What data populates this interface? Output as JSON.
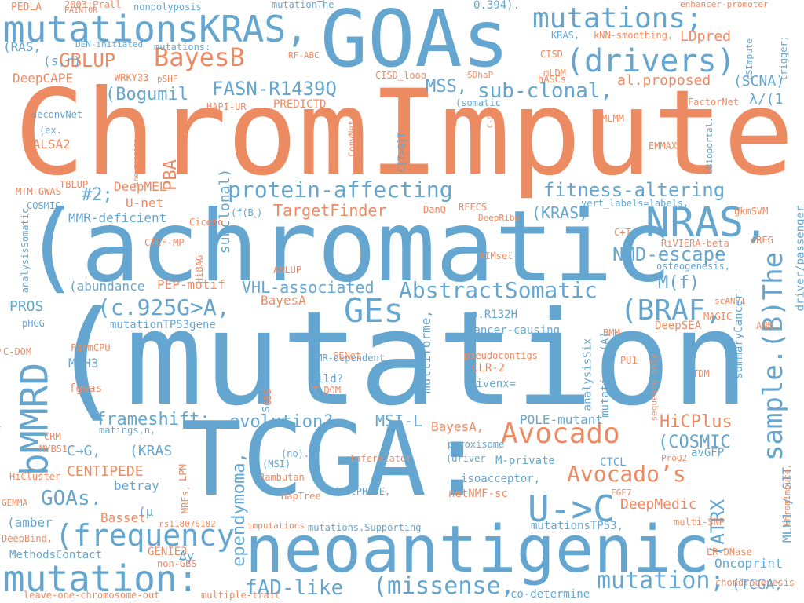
{
  "colors": {
    "blue": "#64a6cf",
    "orange": "#ec8a62"
  },
  "words": [
    {
      "text": "(mutation",
      "color": "#64a6cf"
    },
    {
      "text": "ChromImpute",
      "color": "#ec8a62"
    },
    {
      "text": "(achromatic",
      "color": "#64a6cf"
    },
    {
      "text": "TCGA:",
      "color": "#64a6cf"
    },
    {
      "text": "GOAs",
      "color": "#64a6cf"
    },
    {
      "text": "neoantigenic",
      "color": "#64a6cf"
    },
    {
      "text": "mutationsKRAS,",
      "color": "#64a6cf"
    },
    {
      "text": "mutations;",
      "color": "#64a6cf"
    },
    {
      "text": "(drivers)",
      "color": "#64a6cf"
    },
    {
      "text": "NRAS,",
      "color": "#64a6cf"
    },
    {
      "text": "sample.(B)The",
      "color": "#64a6cf"
    },
    {
      "text": "bMMRD",
      "color": "#64a6cf"
    },
    {
      "text": "mutation:",
      "color": "#64a6cf"
    },
    {
      "text": "Avocado",
      "color": "#ec8a62"
    },
    {
      "text": "U->C",
      "color": "#64a6cf"
    },
    {
      "text": "GEs",
      "color": "#64a6cf"
    },
    {
      "text": "BayesB",
      "color": "#ec8a62"
    },
    {
      "text": "(frequency",
      "color": "#64a6cf"
    },
    {
      "text": "mutation;",
      "color": "#64a6cf"
    },
    {
      "text": "AbstractSomatic",
      "color": "#64a6cf"
    },
    {
      "text": "(BRAF,",
      "color": "#64a6cf"
    },
    {
      "text": "(c.925G>A,",
      "color": "#64a6cf"
    },
    {
      "text": "protein-affecting",
      "color": "#64a6cf"
    },
    {
      "text": "Avocado’s",
      "color": "#ec8a62"
    },
    {
      "text": "sub-clonal,",
      "color": "#64a6cf"
    },
    {
      "text": "(missense,",
      "color": "#64a6cf"
    },
    {
      "text": "FASN-R1439Q",
      "color": "#64a6cf"
    },
    {
      "text": "fitness-altering",
      "color": "#64a6cf"
    },
    {
      "text": "NMD-escape",
      "color": "#64a6cf"
    },
    {
      "text": "GBLUP",
      "color": "#ec8a62"
    },
    {
      "text": "(ATRX",
      "color": "#64a6cf"
    },
    {
      "text": "fAD-like",
      "color": "#64a6cf"
    },
    {
      "text": "GOAs.",
      "color": "#64a6cf"
    },
    {
      "text": "(Bogumil",
      "color": "#64a6cf"
    },
    {
      "text": "frameshift;",
      "color": "#64a6cf"
    },
    {
      "text": "evolution?",
      "color": "#64a6cf"
    },
    {
      "text": "ependymoma,",
      "color": "#64a6cf"
    },
    {
      "text": "M(f)",
      "color": "#64a6cf"
    },
    {
      "text": "HiCPlus",
      "color": "#ec8a62"
    },
    {
      "text": "(COSMIC",
      "color": "#64a6cf"
    },
    {
      "text": "MSS,",
      "color": "#64a6cf"
    },
    {
      "text": "TargetFinder",
      "color": "#ec8a62"
    },
    {
      "text": "(KRAS,",
      "color": "#64a6cf"
    },
    {
      "text": "VHL-associated",
      "color": "#64a6cf"
    },
    {
      "text": "MSI-L",
      "color": "#64a6cf"
    },
    {
      "text": "CENTIPEDE",
      "color": "#ec8a62"
    },
    {
      "text": "C→G,",
      "color": "#64a6cf"
    },
    {
      "text": "(KRAS",
      "color": "#64a6cf"
    },
    {
      "text": "PBA",
      "color": "#ec8a62"
    },
    {
      "text": "#2;",
      "color": "#64a6cf"
    },
    {
      "text": "DeepMedic",
      "color": "#ec8a62"
    },
    {
      "text": "(TCGA;",
      "color": "#64a6cf"
    },
    {
      "text": "Oncoprint",
      "color": "#64a6cf"
    },
    {
      "text": "MLH1-/-GIT",
      "color": "#64a6cf"
    },
    {
      "text": "PROS",
      "color": "#64a6cf"
    },
    {
      "text": "LDpred",
      "color": "#ec8a62"
    },
    {
      "text": "(SCNA)",
      "color": "#64a6cf"
    },
    {
      "text": "λ/(1",
      "color": "#64a6cf"
    },
    {
      "text": "al.proposed",
      "color": "#ec8a62"
    },
    {
      "text": "subclonal)",
      "color": "#64a6cf"
    },
    {
      "text": "multiforme,",
      "color": "#64a6cf"
    },
    {
      "text": "so-encoded",
      "color": "#64a6cf"
    },
    {
      "text": "POLE-mutant",
      "color": "#64a6cf"
    },
    {
      "text": "(abundance",
      "color": "#64a6cf"
    },
    {
      "text": "PEP-motif",
      "color": "#ec8a62"
    },
    {
      "text": "BayesA",
      "color": "#ec8a62"
    },
    {
      "text": "BayesA,",
      "color": "#ec8a62"
    },
    {
      "text": "MSH3",
      "color": "#64a6cf"
    },
    {
      "text": "MMR-deficient",
      "color": "#64a6cf"
    },
    {
      "text": "U-net",
      "color": "#ec8a62"
    },
    {
      "text": "DeepMEL",
      "color": "#ec8a62"
    },
    {
      "text": "SALSA2",
      "color": "#ec8a62"
    },
    {
      "text": "DeepCAPE",
      "color": "#ec8a62"
    },
    {
      "text": "(RAS,",
      "color": "#64a6cf"
    },
    {
      "text": "(s,r)",
      "color": "#64a6cf"
    },
    {
      "text": "PEDLA",
      "color": "#ec8a62"
    },
    {
      "text": "mutationThe",
      "color": "#64a6cf"
    },
    {
      "text": "0.394).",
      "color": "#64a6cf"
    },
    {
      "text": "nonpolyposis",
      "color": "#64a6cf"
    },
    {
      "text": "2003;Prall",
      "color": "#ec8a62"
    },
    {
      "text": "PAINTOR",
      "color": "#ec8a62"
    },
    {
      "text": "mutations:",
      "color": "#64a6cf"
    },
    {
      "text": "DEN-initiated",
      "color": "#64a6cf"
    },
    {
      "text": "RF-ABC",
      "color": "#ec8a62"
    },
    {
      "text": "WRKY33",
      "color": "#ec8a62"
    },
    {
      "text": "pSHF",
      "color": "#ec8a62"
    },
    {
      "text": "HAPI-UR",
      "color": "#ec8a62"
    },
    {
      "text": "PREDICTD",
      "color": "#ec8a62"
    },
    {
      "text": "CISD_loop",
      "color": "#ec8a62"
    },
    {
      "text": "CISD",
      "color": "#ec8a62"
    },
    {
      "text": "mLDM",
      "color": "#ec8a62"
    },
    {
      "text": "hASCs",
      "color": "#ec8a62"
    },
    {
      "text": "SDhaP",
      "color": "#ec8a62"
    },
    {
      "text": "(somatic",
      "color": "#64a6cf"
    },
    {
      "text": "FactorNet",
      "color": "#ec8a62"
    },
    {
      "text": "KRAS,",
      "color": "#64a6cf"
    },
    {
      "text": "kNN-smoothing,",
      "color": "#ec8a62"
    },
    {
      "text": "enhancer-promoter",
      "color": "#ec8a62"
    },
    {
      "text": "givenx=",
      "color": "#64a6cf"
    },
    {
      "text": "CLR-2",
      "color": "#ec8a62"
    },
    {
      "text": "pseudocontigs",
      "color": "#ec8a62"
    },
    {
      "text": "wild?",
      "color": "#64a6cf"
    },
    {
      "text": "MMR-dependent",
      "color": "#64a6cf"
    },
    {
      "text": "p.R132H",
      "color": "#64a6cf"
    },
    {
      "text": "analysisSix",
      "color": "#64a6cf"
    },
    {
      "text": "mutations.(A)",
      "color": "#64a6cf"
    },
    {
      "text": "cancer-causing",
      "color": "#64a6cf"
    },
    {
      "text": "isoacceptor,",
      "color": "#64a6cf"
    },
    {
      "text": "betray",
      "color": "#64a6cf"
    },
    {
      "text": "netNMF-sc",
      "color": "#ec8a62"
    },
    {
      "text": "CTCL",
      "color": "#64a6cf"
    },
    {
      "text": "M-private",
      "color": "#64a6cf"
    },
    {
      "text": "avGFP",
      "color": "#64a6cf"
    },
    {
      "text": "mutationsTP53,",
      "color": "#64a6cf"
    },
    {
      "text": "mutations.Supporting",
      "color": "#64a6cf"
    },
    {
      "text": "GENIE3",
      "color": "#ec8a62"
    },
    {
      "text": "MethodsContact",
      "color": "#64a6cf"
    },
    {
      "text": "(amber",
      "color": "#64a6cf"
    },
    {
      "text": "Basset",
      "color": "#ec8a62"
    },
    {
      "text": "Δy",
      "color": "#64a6cf"
    },
    {
      "text": "matings,n,",
      "color": "#64a6cf"
    },
    {
      "text": "mutationTP53gene",
      "color": "#64a6cf"
    },
    {
      "text": "fgwas",
      "color": "#ec8a62"
    },
    {
      "text": "MLMM",
      "color": "#ec8a62"
    },
    {
      "text": "EMMAX",
      "color": "#ec8a62"
    },
    {
      "text": "RiVIERA-beta",
      "color": "#ec8a62"
    },
    {
      "text": "osteogenesis,",
      "color": "#64a6cf"
    },
    {
      "text": "DeepSEA",
      "color": "#ec8a62"
    },
    {
      "text": "MAGIC",
      "color": "#ec8a62"
    },
    {
      "text": "BMM",
      "color": "#ec8a62"
    },
    {
      "text": "PU1",
      "color": "#ec8a62"
    },
    {
      "text": "TDM",
      "color": "#ec8a62"
    },
    {
      "text": "FGF7",
      "color": "#ec8a62"
    },
    {
      "text": "multi-SNP",
      "color": "#ec8a62"
    },
    {
      "text": "LR-DNase",
      "color": "#ec8a62"
    },
    {
      "text": "chondrogenesis",
      "color": "#ec8a62"
    },
    {
      "text": "co-determine",
      "color": "#64a6cf"
    },
    {
      "text": "multiple-trait",
      "color": "#ec8a62"
    },
    {
      "text": "leave-one-chromosome-out",
      "color": "#ec8a62"
    },
    {
      "text": "imputations",
      "color": "#ec8a62"
    },
    {
      "text": "rs118078182",
      "color": "#ec8a62"
    },
    {
      "text": "DeepBind,",
      "color": "#ec8a62"
    },
    {
      "text": "HiCluster",
      "color": "#ec8a62"
    },
    {
      "text": "GEMMA",
      "color": "#ec8a62"
    },
    {
      "text": "non-GBS",
      "color": "#ec8a62"
    },
    {
      "text": "HapTree",
      "color": "#ec8a62"
    },
    {
      "text": "Rambutan",
      "color": "#ec8a62"
    },
    {
      "text": "fastPHASE,",
      "color": "#64a6cf"
    },
    {
      "text": "Inferelator",
      "color": "#ec8a62"
    },
    {
      "text": "(driver",
      "color": "#64a6cf"
    },
    {
      "text": "peroxisome",
      "color": "#64a6cf"
    },
    {
      "text": "(MSI)",
      "color": "#64a6cf"
    },
    {
      "text": "(no).",
      "color": "#64a6cf"
    },
    {
      "text": "CRM",
      "color": "#ec8a62"
    },
    {
      "text": "MYB51",
      "color": "#ec8a62"
    },
    {
      "text": "LPM",
      "color": "#ec8a62"
    },
    {
      "text": "MRFs,",
      "color": "#ec8a62"
    },
    {
      "text": "GBS",
      "color": "#ec8a62"
    },
    {
      "text": "T-DOM",
      "color": "#ec8a62"
    },
    {
      "text": "SENet",
      "color": "#ec8a62"
    },
    {
      "text": "FarmCPU",
      "color": "#ec8a62"
    },
    {
      "text": "C-DOM",
      "color": "#ec8a62"
    },
    {
      "text": "pHGG",
      "color": "#64a6cf"
    },
    {
      "text": "AIMset",
      "color": "#ec8a62"
    },
    {
      "text": "ABLUP",
      "color": "#ec8a62"
    },
    {
      "text": "CTCF-MP",
      "color": "#ec8a62"
    },
    {
      "text": "HiBAG",
      "color": "#ec8a62"
    },
    {
      "text": "Cicero",
      "color": "#ec8a62"
    },
    {
      "text": "(f(B‸)",
      "color": "#64a6cf"
    },
    {
      "text": "DanQ",
      "color": "#ec8a62"
    },
    {
      "text": "RFECS",
      "color": "#ec8a62"
    },
    {
      "text": "DeepRibo",
      "color": "#ec8a62"
    },
    {
      "text": "vert_labels=labels,",
      "color": "#64a6cf"
    },
    {
      "text": "gkmSVM",
      "color": "#ec8a62"
    },
    {
      "text": "C+T",
      "color": "#ec8a62"
    },
    {
      "text": "dREG",
      "color": "#ec8a62"
    },
    {
      "text": "scANVI",
      "color": "#ec8a62"
    },
    {
      "text": "ANN,",
      "color": "#ec8a62"
    },
    {
      "text": "TBLUP",
      "color": "#ec8a62"
    },
    {
      "text": "COSMIC,",
      "color": "#64a6cf"
    },
    {
      "text": "MTM-GWAS",
      "color": "#ec8a62"
    },
    {
      "text": "deconvNet",
      "color": "#64a6cf"
    },
    {
      "text": "(ex.",
      "color": "#64a6cf"
    },
    {
      "text": "(μ",
      "color": "#64a6cf"
    },
    {
      "text": "analysisSomatic",
      "color": "#64a6cf"
    },
    {
      "text": "supervised-learning",
      "color": "#ec8a62"
    },
    {
      "text": "C[T>G]T",
      "color": "#64a6cf"
    },
    {
      "text": "ConvNet",
      "color": "#ec8a62"
    },
    {
      "text": "WU",
      "color": "#ec8a62"
    },
    {
      "text": "C-CNN",
      "color": "#ec8a62"
    },
    {
      "text": "fine-mapping",
      "color": "#ec8a62"
    },
    {
      "text": "cBioportal.",
      "color": "#64a6cf"
    },
    {
      "text": "cSImpute",
      "color": "#64a6cf"
    },
    {
      "text": "trigger;",
      "color": "#64a6cf"
    },
    {
      "text": "driver/passenger",
      "color": "#64a6cf"
    },
    {
      "text": "summaryCancer",
      "color": "#64a6cf"
    },
    {
      "text": "sequence-only",
      "color": "#ec8a62"
    },
    {
      "text": "ChromImpute,",
      "color": "#ec8a62"
    },
    {
      "text": "ProQ2",
      "color": "#ec8a62"
    }
  ]
}
